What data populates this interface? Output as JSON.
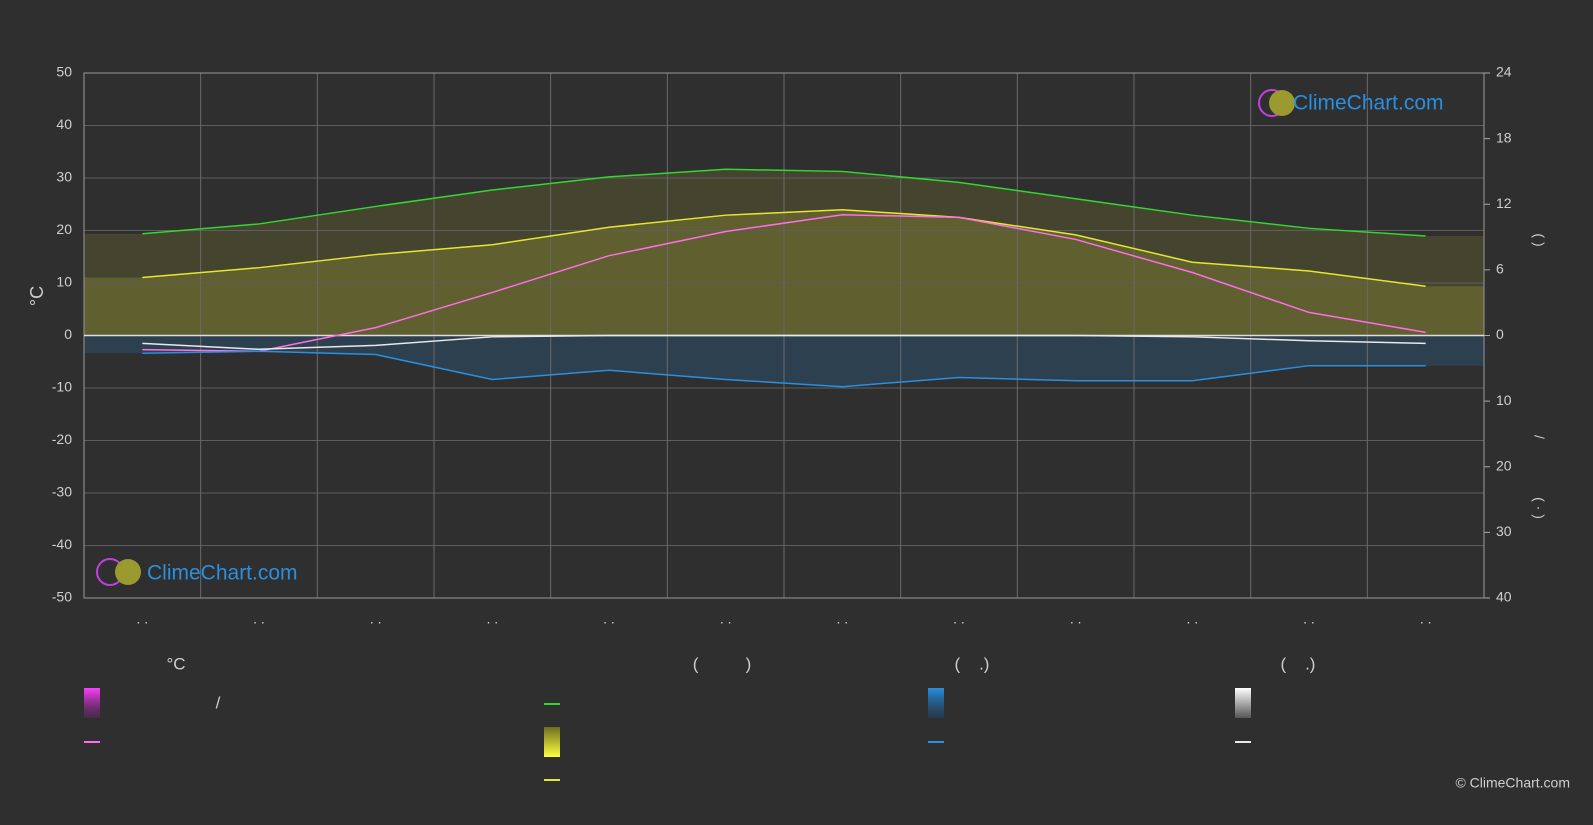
{
  "chart_data": {
    "type": "line",
    "categories": [
      ". .",
      ". .",
      ". .",
      ". .",
      ". .",
      ". .",
      ". .",
      ". .",
      ". .",
      ". .",
      ". .",
      ". ."
    ],
    "ylim": [
      -50,
      50
    ],
    "yticks": [
      -50,
      -40,
      -30,
      -20,
      -10,
      0,
      10,
      20,
      30,
      40,
      50
    ],
    "y_label": "°C",
    "y2lim": [
      0,
      24
    ],
    "y2ticks": [
      0,
      6,
      12,
      18,
      24
    ],
    "y3lim": [
      0,
      40
    ],
    "y3ticks": [
      10,
      20,
      30,
      40
    ],
    "y2_label_parts": [
      "(   )",
      "/",
      "( · )"
    ],
    "grid": true,
    "series": [
      {
        "color": "#33d633",
        "axis": "y2",
        "values": [
          9.3,
          10.2,
          11.8,
          13.3,
          14.5,
          15.2,
          15.0,
          14.0,
          12.5,
          11.0,
          9.8,
          9.1
        ]
      },
      {
        "color": "#e6e632",
        "axis": "y2",
        "values": [
          5.3,
          6.2,
          7.4,
          8.3,
          9.9,
          11.0,
          11.5,
          10.8,
          9.2,
          6.7,
          5.9,
          4.5
        ]
      },
      {
        "color": "#ff6ee6",
        "values": [
          -2.7,
          -3.0,
          1.5,
          8.2,
          15.2,
          19.8,
          23.0,
          22.5,
          18.3,
          12.0,
          4.4,
          0.6
        ]
      },
      {
        "color": "#2a8fe0",
        "axis": "y3",
        "values": [
          2.7,
          2.4,
          2.9,
          6.7,
          5.3,
          6.7,
          7.8,
          6.4,
          6.9,
          6.9,
          4.6,
          4.6
        ]
      },
      {
        "color": "#e8e8e8",
        "axis": "y3",
        "values": [
          1.2,
          2.1,
          1.5,
          0.2,
          0,
          0,
          0,
          0,
          0,
          0.2,
          0.8,
          1.2
        ]
      }
    ],
    "watermark": "ClimeChart.com",
    "copyright": "© ClimeChart.com"
  },
  "legend": {
    "headers": [
      "°C",
      "(          )",
      "(    .)",
      "(    .)"
    ],
    "items": [
      "/"
    ]
  }
}
